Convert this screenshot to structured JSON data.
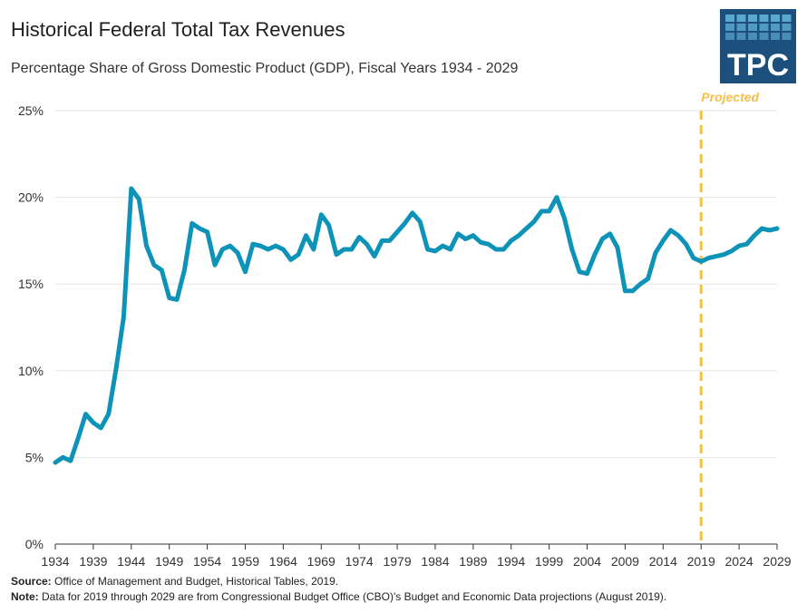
{
  "header": {
    "title": "Historical Federal Total Tax Revenues",
    "subtitle": "Percentage Share of Gross Domestic Product (GDP), Fiscal Years 1934 - 2029"
  },
  "logo": {
    "text": "TPC",
    "background": "#1c4f7b",
    "tile_color": "#5aa8cf"
  },
  "projection": {
    "label": "Projected",
    "year": 2019,
    "color": "#f5c04a"
  },
  "chart_data": {
    "type": "line",
    "title": "Historical Federal Total Tax Revenues",
    "subtitle": "Percentage Share of Gross Domestic Product (GDP), Fiscal Years 1934 - 2029",
    "xlim": [
      1934,
      2029
    ],
    "ylim": [
      0,
      25
    ],
    "x_ticks": [
      1934,
      1939,
      1944,
      1949,
      1954,
      1959,
      1964,
      1969,
      1974,
      1979,
      1984,
      1989,
      1994,
      1999,
      2004,
      2009,
      2014,
      2019,
      2024,
      2029
    ],
    "x_tick_labels": [
      "1934",
      "1939",
      "1944",
      "1949",
      "1954",
      "1959",
      "1964",
      "1969",
      "1974",
      "1979",
      "1984",
      "1989",
      "1994",
      "1999",
      "2004",
      "2009",
      "2014",
      "2019",
      "2024",
      "2029"
    ],
    "y_ticks": [
      0,
      5,
      10,
      15,
      20,
      25
    ],
    "y_tick_labels": [
      "0%",
      "5%",
      "10%",
      "15%",
      "20%",
      "25%"
    ],
    "grid": "horizontal",
    "line_color": "#0e93b8",
    "series": [
      {
        "x": [
          1934,
          1935,
          1936,
          1937,
          1938,
          1939,
          1940,
          1941,
          1942,
          1943,
          1944,
          1945,
          1946,
          1947,
          1948,
          1949,
          1950,
          1951,
          1952,
          1953,
          1954,
          1955,
          1956,
          1957,
          1958,
          1959,
          1960,
          1961,
          1962,
          1963,
          1964,
          1965,
          1966,
          1967,
          1968,
          1969,
          1970,
          1971,
          1972,
          1973,
          1974,
          1975,
          1976,
          1977,
          1978,
          1979,
          1980,
          1981,
          1982,
          1983,
          1984,
          1985,
          1986,
          1987,
          1988,
          1989,
          1990,
          1991,
          1992,
          1993,
          1994,
          1995,
          1996,
          1997,
          1998,
          1999,
          2000,
          2001,
          2002,
          2003,
          2004,
          2005,
          2006,
          2007,
          2008,
          2009,
          2010,
          2011,
          2012,
          2013,
          2014,
          2015,
          2016,
          2017,
          2018,
          2019,
          2020,
          2021,
          2022,
          2023,
          2024,
          2025,
          2026,
          2027,
          2028,
          2029
        ],
        "values": [
          4.7,
          5.0,
          4.8,
          6.1,
          7.5,
          7.0,
          6.7,
          7.5,
          10.1,
          13.1,
          20.5,
          19.9,
          17.2,
          16.1,
          15.8,
          14.2,
          14.1,
          15.8,
          18.5,
          18.2,
          18.0,
          16.1,
          17.0,
          17.2,
          16.8,
          15.7,
          17.3,
          17.2,
          17.0,
          17.2,
          17.0,
          16.4,
          16.7,
          17.8,
          17.0,
          19.0,
          18.4,
          16.7,
          17.0,
          17.0,
          17.7,
          17.3,
          16.6,
          17.5,
          17.5,
          18.0,
          18.5,
          19.1,
          18.6,
          17.0,
          16.9,
          17.2,
          17.0,
          17.9,
          17.6,
          17.8,
          17.4,
          17.3,
          17.0,
          17.0,
          17.5,
          17.8,
          18.2,
          18.6,
          19.2,
          19.2,
          20.0,
          18.8,
          17.0,
          15.7,
          15.6,
          16.7,
          17.6,
          17.9,
          17.1,
          14.6,
          14.6,
          15.0,
          15.3,
          16.8,
          17.5,
          18.1,
          17.8,
          17.3,
          16.5,
          16.3,
          16.5,
          16.6,
          16.7,
          16.9,
          17.2,
          17.3,
          17.8,
          18.2,
          18.1,
          18.2
        ]
      }
    ]
  },
  "footer": {
    "source_label": "Source:",
    "source_text": "Office of Management and Budget, Historical Tables, 2019.",
    "note_label": "Note:",
    "note_text": "Data for 2019 through 2029 are from Congressional Budget Office (CBO)'s Budget and Economic Data projections (August 2019)."
  }
}
